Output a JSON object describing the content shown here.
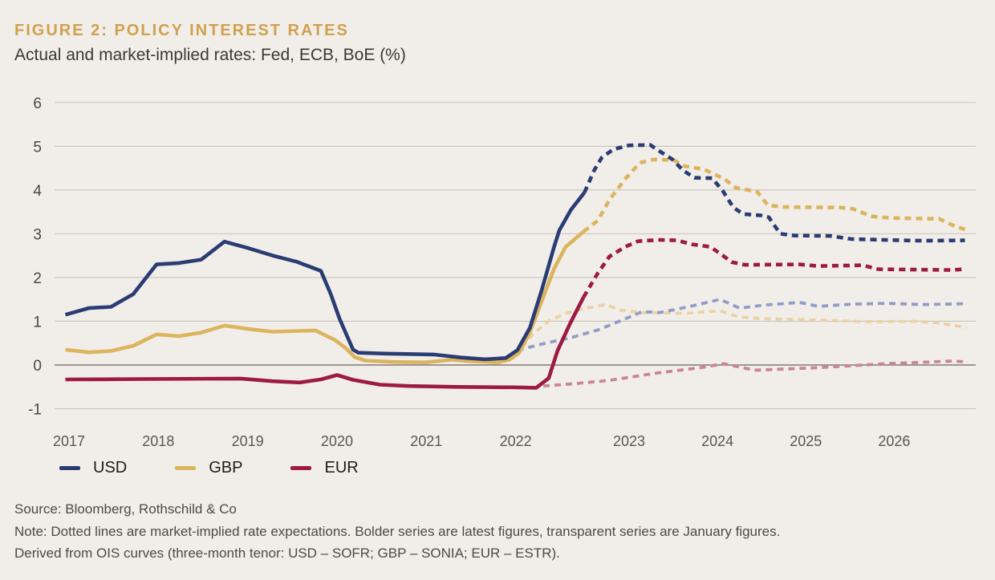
{
  "header": {
    "figure_label": "FIGURE 2: POLICY INTEREST RATES",
    "subtitle": "Actual and market-implied rates: Fed, ECB, BoE (%)"
  },
  "legend": [
    {
      "label": "USD",
      "color": "#2a3c72"
    },
    {
      "label": "GBP",
      "color": "#dcb45e"
    },
    {
      "label": "EUR",
      "color": "#9d1a45"
    }
  ],
  "footer": {
    "source": "Source: Bloomberg, Rothschild & Co",
    "note": "Note: Dotted lines are market-implied rate expectations. Bolder series are latest figures, transparent series are January figures.",
    "derivation": "Derived from OIS curves (three-month tenor: USD – SOFR; GBP – SONIA; EUR – ESTR)."
  },
  "chart_data": {
    "type": "line",
    "title": "Policy interest rates",
    "subtitle": "Actual and market-implied rates: Fed, ECB, BoE (%)",
    "xlabel": "",
    "ylabel": "%",
    "ylim": [
      -1,
      6
    ],
    "yticks": [
      6,
      5,
      4,
      3,
      2,
      1,
      0,
      -1
    ],
    "xticks": [
      2017,
      2018,
      2019,
      2020,
      2021,
      2022,
      2023,
      2024,
      2025,
      2026
    ],
    "grid": "horizontal",
    "legend_position": "bottom",
    "colors": {
      "usd": "#2a3c72",
      "gbp": "#dcb45e",
      "eur": "#9d1a45",
      "usd_light": "#939cc6",
      "gbp_light": "#e9d3a3",
      "eur_light": "#c98595",
      "grid": "#c8c3bc",
      "zero_line": "#908a81"
    },
    "series": [
      {
        "name": "GBP implied (January figures)",
        "color": "#e9d3a3",
        "style": "dotted",
        "weight": "light",
        "points": [
          [
            2022.07,
            0.4
          ],
          [
            2022.2,
            0.72
          ],
          [
            2022.38,
            1.02
          ],
          [
            2022.56,
            1.18
          ],
          [
            2022.79,
            1.3
          ],
          [
            2022.94,
            1.38
          ],
          [
            2022.98,
            1.25
          ],
          [
            2023.15,
            1.2
          ],
          [
            2023.64,
            1.18
          ],
          [
            2024.03,
            1.24
          ],
          [
            2024.24,
            1.1
          ],
          [
            2024.51,
            1.06
          ],
          [
            2024.96,
            1.04
          ],
          [
            2025.69,
            0.99
          ],
          [
            2026.23,
            1.0
          ],
          [
            2026.46,
            0.97
          ],
          [
            2026.69,
            0.9
          ],
          [
            2026.82,
            0.85
          ]
        ]
      },
      {
        "name": "USD implied (January figures)",
        "color": "#939cc6",
        "style": "dotted",
        "weight": "light",
        "points": [
          [
            2022.02,
            0.34
          ],
          [
            2022.34,
            0.5
          ],
          [
            2022.61,
            0.62
          ],
          [
            2022.92,
            0.8
          ],
          [
            2022.98,
            1.02
          ],
          [
            2023.15,
            1.22
          ],
          [
            2023.35,
            1.2
          ],
          [
            2023.55,
            1.28
          ],
          [
            2023.78,
            1.38
          ],
          [
            2024.03,
            1.5
          ],
          [
            2024.25,
            1.3
          ],
          [
            2024.53,
            1.37
          ],
          [
            2024.93,
            1.43
          ],
          [
            2025.14,
            1.34
          ],
          [
            2025.51,
            1.39
          ],
          [
            2025.93,
            1.41
          ],
          [
            2026.32,
            1.38
          ],
          [
            2026.8,
            1.4
          ]
        ]
      },
      {
        "name": "EUR implied (January figures)",
        "color": "#c98595",
        "style": "dotted",
        "weight": "light",
        "points": [
          [
            2022.31,
            -0.48
          ],
          [
            2022.7,
            -0.42
          ],
          [
            2022.95,
            -0.35
          ],
          [
            2023.33,
            -0.18
          ],
          [
            2023.81,
            -0.06
          ],
          [
            2024.07,
            0.03
          ],
          [
            2024.42,
            -0.12
          ],
          [
            2025.14,
            -0.06
          ],
          [
            2025.9,
            0.03
          ],
          [
            2026.66,
            0.09
          ],
          [
            2026.82,
            0.07
          ]
        ]
      },
      {
        "name": "EUR implied (latest)",
        "color": "#9d1a45",
        "style": "dotted",
        "weight": "bold",
        "points": [
          [
            2022.76,
            1.55
          ],
          [
            2022.92,
            2.1
          ],
          [
            2022.95,
            2.48
          ],
          [
            2022.99,
            2.7
          ],
          [
            2023.1,
            2.83
          ],
          [
            2023.33,
            2.86
          ],
          [
            2023.54,
            2.85
          ],
          [
            2023.71,
            2.76
          ],
          [
            2023.92,
            2.7
          ],
          [
            2024.05,
            2.52
          ],
          [
            2024.16,
            2.35
          ],
          [
            2024.31,
            2.29
          ],
          [
            2024.93,
            2.3
          ],
          [
            2025.14,
            2.26
          ],
          [
            2025.64,
            2.28
          ],
          [
            2025.82,
            2.19
          ],
          [
            2026.23,
            2.18
          ],
          [
            2026.64,
            2.17
          ],
          [
            2026.8,
            2.19
          ]
        ]
      },
      {
        "name": "GBP implied (latest)",
        "color": "#dcb45e",
        "style": "dotted",
        "weight": "bold",
        "points": [
          [
            2022.76,
            3.05
          ],
          [
            2022.92,
            3.3
          ],
          [
            2022.95,
            3.78
          ],
          [
            2022.99,
            4.25
          ],
          [
            2023.12,
            4.62
          ],
          [
            2023.28,
            4.7
          ],
          [
            2023.51,
            4.68
          ],
          [
            2023.62,
            4.55
          ],
          [
            2023.85,
            4.47
          ],
          [
            2024.08,
            4.25
          ],
          [
            2024.21,
            4.05
          ],
          [
            2024.45,
            3.96
          ],
          [
            2024.57,
            3.65
          ],
          [
            2024.75,
            3.61
          ],
          [
            2025.39,
            3.6
          ],
          [
            2025.53,
            3.57
          ],
          [
            2025.74,
            3.4
          ],
          [
            2025.96,
            3.36
          ],
          [
            2026.51,
            3.34
          ],
          [
            2026.69,
            3.17
          ],
          [
            2026.8,
            3.1
          ]
        ]
      },
      {
        "name": "USD implied (latest)",
        "color": "#2a3c72",
        "style": "dotted",
        "weight": "bold",
        "points": [
          [
            2022.77,
            3.94
          ],
          [
            2022.88,
            4.45
          ],
          [
            2022.93,
            4.74
          ],
          [
            2022.96,
            4.93
          ],
          [
            2023.0,
            5.02
          ],
          [
            2023.24,
            5.03
          ],
          [
            2023.35,
            4.88
          ],
          [
            2023.49,
            4.7
          ],
          [
            2023.61,
            4.45
          ],
          [
            2023.74,
            4.28
          ],
          [
            2023.94,
            4.27
          ],
          [
            2024.06,
            3.98
          ],
          [
            2024.18,
            3.6
          ],
          [
            2024.29,
            3.45
          ],
          [
            2024.49,
            3.42
          ],
          [
            2024.58,
            3.38
          ],
          [
            2024.71,
            3.0
          ],
          [
            2024.87,
            2.96
          ],
          [
            2025.28,
            2.95
          ],
          [
            2025.51,
            2.88
          ],
          [
            2025.87,
            2.86
          ],
          [
            2026.32,
            2.84
          ],
          [
            2026.8,
            2.85
          ]
        ]
      },
      {
        "name": "EUR actual",
        "color": "#9d1a45",
        "style": "solid",
        "weight": "bold",
        "points": [
          [
            2016.96,
            -0.33
          ],
          [
            2017.84,
            -0.32
          ],
          [
            2018.92,
            -0.31
          ],
          [
            2019.28,
            -0.37
          ],
          [
            2019.58,
            -0.4
          ],
          [
            2019.82,
            -0.33
          ],
          [
            2020.0,
            -0.23
          ],
          [
            2020.18,
            -0.34
          ],
          [
            2020.48,
            -0.45
          ],
          [
            2020.81,
            -0.48
          ],
          [
            2021.35,
            -0.5
          ],
          [
            2021.98,
            -0.51
          ],
          [
            2022.23,
            -0.52
          ],
          [
            2022.37,
            -0.3
          ],
          [
            2022.47,
            0.33
          ],
          [
            2022.61,
            0.95
          ],
          [
            2022.76,
            1.55
          ]
        ]
      },
      {
        "name": "GBP actual",
        "color": "#dcb45e",
        "style": "solid",
        "weight": "bold",
        "points": [
          [
            2016.96,
            0.35
          ],
          [
            2017.22,
            0.29
          ],
          [
            2017.47,
            0.32
          ],
          [
            2017.72,
            0.44
          ],
          [
            2017.98,
            0.7
          ],
          [
            2018.23,
            0.66
          ],
          [
            2018.48,
            0.74
          ],
          [
            2018.74,
            0.9
          ],
          [
            2019.06,
            0.81
          ],
          [
            2019.28,
            0.76
          ],
          [
            2019.58,
            0.78
          ],
          [
            2019.76,
            0.79
          ],
          [
            2019.97,
            0.58
          ],
          [
            2020.09,
            0.4
          ],
          [
            2020.2,
            0.18
          ],
          [
            2020.32,
            0.1
          ],
          [
            2020.63,
            0.07
          ],
          [
            2020.99,
            0.06
          ],
          [
            2021.28,
            0.12
          ],
          [
            2021.53,
            0.08
          ],
          [
            2021.8,
            0.06
          ],
          [
            2021.93,
            0.12
          ],
          [
            2022.04,
            0.28
          ],
          [
            2022.16,
            0.75
          ],
          [
            2022.29,
            1.45
          ],
          [
            2022.43,
            2.2
          ],
          [
            2022.56,
            2.7
          ],
          [
            2022.76,
            3.05
          ]
        ]
      },
      {
        "name": "USD actual",
        "color": "#2a3c72",
        "style": "solid",
        "weight": "bold",
        "points": [
          [
            2016.96,
            1.15
          ],
          [
            2017.22,
            1.3
          ],
          [
            2017.47,
            1.33
          ],
          [
            2017.72,
            1.62
          ],
          [
            2017.98,
            2.3
          ],
          [
            2018.23,
            2.33
          ],
          [
            2018.48,
            2.41
          ],
          [
            2018.74,
            2.82
          ],
          [
            2019.01,
            2.67
          ],
          [
            2019.28,
            2.5
          ],
          [
            2019.55,
            2.36
          ],
          [
            2019.82,
            2.15
          ],
          [
            2019.93,
            1.62
          ],
          [
            2020.03,
            1.05
          ],
          [
            2020.18,
            0.35
          ],
          [
            2020.24,
            0.28
          ],
          [
            2020.54,
            0.26
          ],
          [
            2021.08,
            0.24
          ],
          [
            2021.39,
            0.17
          ],
          [
            2021.66,
            0.13
          ],
          [
            2021.89,
            0.16
          ],
          [
            2022.02,
            0.34
          ],
          [
            2022.16,
            0.85
          ],
          [
            2022.29,
            1.7
          ],
          [
            2022.43,
            2.7
          ],
          [
            2022.49,
            3.08
          ],
          [
            2022.62,
            3.55
          ],
          [
            2022.77,
            3.94
          ]
        ]
      }
    ]
  }
}
